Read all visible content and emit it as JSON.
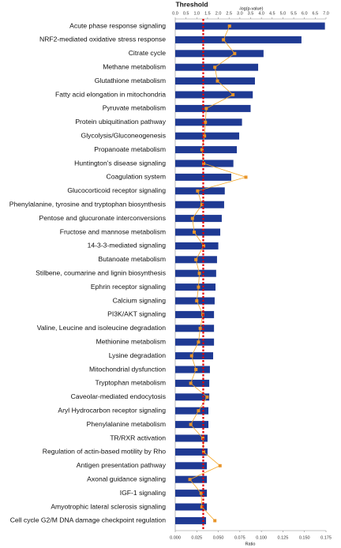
{
  "chart_data": {
    "type": "bar",
    "orientation": "horizontal",
    "threshold": {
      "label": "Threshold",
      "value": 1.3,
      "color": "#e00000"
    },
    "xlabel": "-log(p-value)",
    "x2label": "Ratio",
    "categories": [
      "Acute phase response signaling",
      "NRF2-mediated oxidative stress response",
      "Citrate cycle",
      "Methane metabolism",
      "Glutathione metabolism",
      "Fatty acid elongation in mitochondria",
      "Pyruvate metabolism",
      "Protein ubiquitination pathway",
      "Glycolysis/Gluconeogenesis",
      "Propanoate metabolism",
      "Huntington's disease signaling",
      "Coagulation system",
      "Glucocorticoid receptor signaling",
      "Phenylalanine, tyrosine and tryptophan biosynthesis",
      "Pentose and glucuronate interconversions",
      "Fructose and mannose metabolism",
      "14-3-3-mediated signaling",
      "Butanoate metabolism",
      "Stilbene, coumarine and lignin biosynthesis",
      "Ephrin receptor signaling",
      "Calcium signaling",
      "PI3K/AKT signaling",
      "Valine, Leucine and isoleucine degradation",
      "Methionine metabolism",
      "Lysine degradation",
      "Mitochondrial dysfunction",
      "Tryptophan metabolism",
      "Caveolar-mediated endocytosis",
      "Aryl Hydrocarbon receptor signaling",
      "Phenylalanine metabolism",
      "TR/RXR activation",
      "Regulation of actin-based motility by Rho",
      "Antigen presentation pathway",
      "Axonal guidance signaling",
      "IGF-1 signaling",
      "Amyotrophic lateral sclerosis signaling",
      "Cell cycle G2/M DNA damage checkpoint regulation"
    ],
    "series": [
      {
        "color": "#1f3a93",
        "values": [
          6.95,
          5.86,
          4.1,
          3.85,
          3.7,
          3.6,
          3.5,
          3.1,
          2.97,
          2.86,
          2.7,
          2.6,
          2.3,
          2.27,
          2.16,
          2.09,
          2.0,
          1.94,
          1.9,
          1.87,
          1.83,
          1.8,
          1.8,
          1.8,
          1.76,
          1.61,
          1.58,
          1.58,
          1.54,
          1.54,
          1.5,
          1.5,
          1.47,
          1.47,
          1.47,
          1.47,
          1.43
        ]
      },
      {
        "type": "line",
        "axis": "x2",
        "color": "#f5a623",
        "values": [
          0.063,
          0.056,
          0.069,
          0.046,
          0.049,
          0.067,
          0.036,
          0.035,
          0.034,
          0.031,
          0.033,
          0.082,
          0.026,
          0.031,
          0.02,
          0.022,
          0.033,
          0.024,
          0.028,
          0.027,
          0.025,
          0.032,
          0.029,
          0.027,
          0.019,
          0.024,
          0.018,
          0.037,
          0.027,
          0.018,
          0.032,
          0.033,
          0.052,
          0.017,
          0.03,
          0.031,
          0.046
        ]
      }
    ],
    "xlim": [
      0,
      7
    ],
    "xticks": [
      {
        "value": 0,
        "label": "0.0"
      },
      0.5,
      {
        "value": 1,
        "label": "1.0"
      },
      1.5,
      {
        "value": 2,
        "label": "2.0"
      },
      2.5,
      {
        "value": 3,
        "label": "3.0"
      },
      3.5,
      {
        "value": 4,
        "label": "4.0"
      },
      4.5,
      {
        "value": 5,
        "label": "5.0"
      },
      5.5,
      {
        "value": 6,
        "label": "6.0"
      },
      6.5,
      {
        "value": 7,
        "label": "7.0"
      }
    ],
    "x2lim": [
      0,
      0.175
    ],
    "x2ticks": [
      {
        "value": 0,
        "label": "0.000"
      },
      0.025,
      {
        "value": 0.05,
        "label": "0.050"
      },
      0.075,
      {
        "value": 0.1,
        "label": "0.100"
      },
      0.125,
      {
        "value": 0.15,
        "label": "0.150"
      },
      0.175
    ]
  }
}
